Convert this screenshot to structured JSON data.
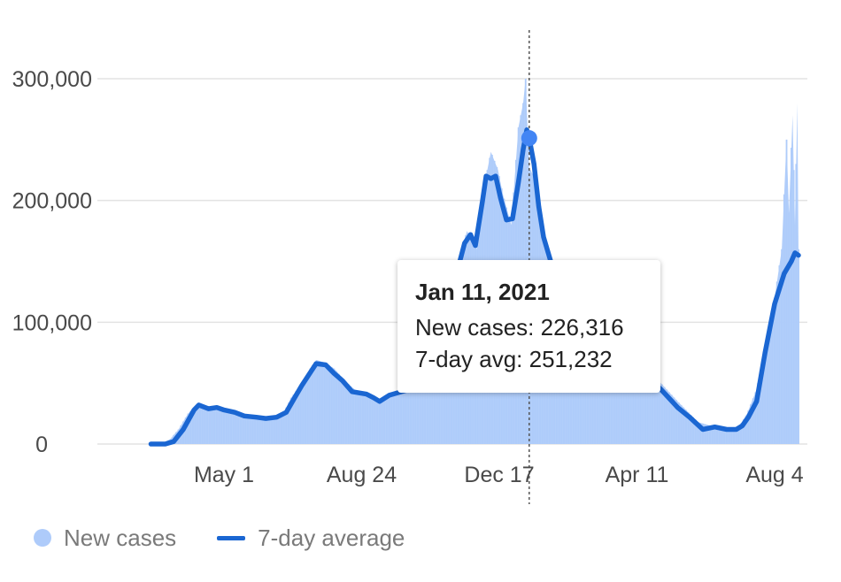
{
  "chart_data": {
    "type": "bar+line",
    "title": "",
    "xlabel": "",
    "ylabel": "",
    "ylim": [
      0,
      300000
    ],
    "yticks": [
      0,
      100000,
      200000,
      300000
    ],
    "ytick_labels": [
      "0",
      "100,000",
      "200,000",
      "300,000"
    ],
    "xticks": [
      {
        "date": "2020-05-01",
        "label": "May 1"
      },
      {
        "date": "2020-08-24",
        "label": "Aug 24"
      },
      {
        "date": "2020-12-17",
        "label": "Dec 17"
      },
      {
        "date": "2021-04-11",
        "label": "Apr 11"
      },
      {
        "date": "2021-08-04",
        "label": "Aug 4"
      }
    ],
    "grid": true,
    "legend": "bottom-left",
    "colors": {
      "bars": "#aecbfa",
      "line": "#1a66d2",
      "grid": "#e3e3e3",
      "marker": "#4285f4"
    },
    "series": [
      {
        "name": "New cases",
        "kind": "bar",
        "points": [
          [
            "2020-03-01",
            0
          ],
          [
            "2020-03-10",
            500
          ],
          [
            "2020-03-17",
            4000
          ],
          [
            "2020-03-24",
            12000
          ],
          [
            "2020-04-01",
            25000
          ],
          [
            "2020-04-06",
            30000
          ],
          [
            "2020-04-15",
            29000
          ],
          [
            "2020-04-24",
            30000
          ],
          [
            "2020-05-01",
            28000
          ],
          [
            "2020-05-10",
            24000
          ],
          [
            "2020-05-20",
            22000
          ],
          [
            "2020-06-01",
            20000
          ],
          [
            "2020-06-10",
            21000
          ],
          [
            "2020-06-20",
            26000
          ],
          [
            "2020-06-26",
            38000
          ],
          [
            "2020-07-05",
            50000
          ],
          [
            "2020-07-12",
            62000
          ],
          [
            "2020-07-17",
            69000
          ],
          [
            "2020-07-24",
            67000
          ],
          [
            "2020-08-01",
            62000
          ],
          [
            "2020-08-10",
            52000
          ],
          [
            "2020-08-20",
            43000
          ],
          [
            "2020-09-01",
            41000
          ],
          [
            "2020-09-08",
            35000
          ],
          [
            "2020-09-15",
            40000
          ],
          [
            "2020-09-25",
            44000
          ],
          [
            "2020-10-05",
            45000
          ],
          [
            "2020-10-15",
            60000
          ],
          [
            "2020-10-25",
            80000
          ],
          [
            "2020-11-01",
            95000
          ],
          [
            "2020-11-10",
            140000
          ],
          [
            "2020-11-20",
            175000
          ],
          [
            "2020-11-28",
            160000
          ],
          [
            "2020-12-05",
            215000
          ],
          [
            "2020-12-10",
            240000
          ],
          [
            "2020-12-16",
            225000
          ],
          [
            "2020-12-20",
            205000
          ],
          [
            "2020-12-27",
            180000
          ],
          [
            "2021-01-02",
            260000
          ],
          [
            "2021-01-06",
            280000
          ],
          [
            "2021-01-08",
            300000
          ],
          [
            "2021-01-11",
            226316
          ],
          [
            "2021-01-15",
            220000
          ],
          [
            "2021-01-22",
            180000
          ],
          [
            "2021-02-01",
            140000
          ],
          [
            "2021-02-15",
            90000
          ],
          [
            "2021-03-01",
            62000
          ],
          [
            "2021-03-15",
            54000
          ],
          [
            "2021-04-01",
            64000
          ],
          [
            "2021-04-11",
            68000
          ],
          [
            "2021-04-20",
            60000
          ],
          [
            "2021-05-01",
            50000
          ],
          [
            "2021-05-15",
            35000
          ],
          [
            "2021-06-01",
            18000
          ],
          [
            "2021-06-15",
            14000
          ],
          [
            "2021-06-25",
            12000
          ],
          [
            "2021-07-05",
            14000
          ],
          [
            "2021-07-12",
            25000
          ],
          [
            "2021-07-20",
            45000
          ],
          [
            "2021-07-27",
            80000
          ],
          [
            "2021-08-04",
            120000
          ],
          [
            "2021-08-10",
            160000
          ],
          [
            "2021-08-14",
            250000
          ],
          [
            "2021-08-16",
            190000
          ],
          [
            "2021-08-19",
            270000
          ],
          [
            "2021-08-21",
            180000
          ],
          [
            "2021-08-23",
            280000
          ],
          [
            "2021-08-24",
            160000
          ]
        ]
      },
      {
        "name": "7-day average",
        "kind": "line",
        "points": [
          [
            "2020-03-01",
            0
          ],
          [
            "2020-03-13",
            0
          ],
          [
            "2020-03-20",
            2000
          ],
          [
            "2020-03-28",
            12000
          ],
          [
            "2020-04-06",
            28000
          ],
          [
            "2020-04-10",
            32000
          ],
          [
            "2020-04-18",
            29000
          ],
          [
            "2020-04-25",
            30000
          ],
          [
            "2020-05-01",
            28000
          ],
          [
            "2020-05-10",
            26000
          ],
          [
            "2020-05-18",
            23000
          ],
          [
            "2020-05-28",
            22000
          ],
          [
            "2020-06-05",
            21000
          ],
          [
            "2020-06-14",
            22000
          ],
          [
            "2020-06-22",
            26000
          ],
          [
            "2020-06-29",
            38000
          ],
          [
            "2020-07-05",
            48000
          ],
          [
            "2020-07-11",
            57000
          ],
          [
            "2020-07-17",
            66000
          ],
          [
            "2020-07-25",
            65000
          ],
          [
            "2020-08-01",
            58000
          ],
          [
            "2020-08-08",
            52000
          ],
          [
            "2020-08-16",
            43000
          ],
          [
            "2020-08-28",
            41000
          ],
          [
            "2020-09-03",
            38000
          ],
          [
            "2020-09-08",
            35000
          ],
          [
            "2020-09-16",
            40000
          ],
          [
            "2020-09-30",
            44000
          ],
          [
            "2020-10-05",
            45000
          ],
          [
            "2020-10-15",
            58000
          ],
          [
            "2020-10-23",
            78000
          ],
          [
            "2020-11-01",
            95000
          ],
          [
            "2020-11-10",
            135000
          ],
          [
            "2020-11-18",
            165000
          ],
          [
            "2020-11-23",
            172000
          ],
          [
            "2020-11-27",
            163000
          ],
          [
            "2020-12-03",
            200000
          ],
          [
            "2020-12-06",
            220000
          ],
          [
            "2020-12-10",
            218000
          ],
          [
            "2020-12-14",
            220000
          ],
          [
            "2020-12-18",
            202000
          ],
          [
            "2020-12-23",
            184000
          ],
          [
            "2020-12-28",
            185000
          ],
          [
            "2021-01-02",
            215000
          ],
          [
            "2021-01-06",
            242000
          ],
          [
            "2021-01-09",
            258000
          ],
          [
            "2021-01-11",
            251232
          ],
          [
            "2021-01-15",
            230000
          ],
          [
            "2021-01-19",
            195000
          ],
          [
            "2021-01-23",
            170000
          ],
          [
            "2021-02-01",
            140000
          ],
          [
            "2021-02-15",
            90000
          ],
          [
            "2021-03-01",
            62000
          ],
          [
            "2021-03-15",
            54000
          ],
          [
            "2021-04-01",
            64000
          ],
          [
            "2021-04-11",
            68000
          ],
          [
            "2021-04-20",
            55000
          ],
          [
            "2021-05-01",
            45000
          ],
          [
            "2021-05-15",
            30000
          ],
          [
            "2021-05-25",
            22000
          ],
          [
            "2021-06-05",
            12000
          ],
          [
            "2021-06-15",
            14000
          ],
          [
            "2021-06-25",
            12000
          ],
          [
            "2021-07-03",
            12000
          ],
          [
            "2021-07-08",
            15000
          ],
          [
            "2021-07-13",
            22000
          ],
          [
            "2021-07-20",
            35000
          ],
          [
            "2021-07-27",
            75000
          ],
          [
            "2021-08-04",
            115000
          ],
          [
            "2021-08-12",
            140000
          ],
          [
            "2021-08-18",
            150000
          ],
          [
            "2021-08-21",
            157000
          ],
          [
            "2021-08-24",
            155000
          ]
        ]
      }
    ],
    "highlight": {
      "date": "2021-01-11",
      "value": 251232
    }
  },
  "tooltip": {
    "date": "Jan 11, 2021",
    "new_cases_line": "New cases: 226,316",
    "avg_line": "7-day avg: 251,232"
  },
  "legend": {
    "new_cases_label": "New cases",
    "avg_label": "7-day average"
  }
}
